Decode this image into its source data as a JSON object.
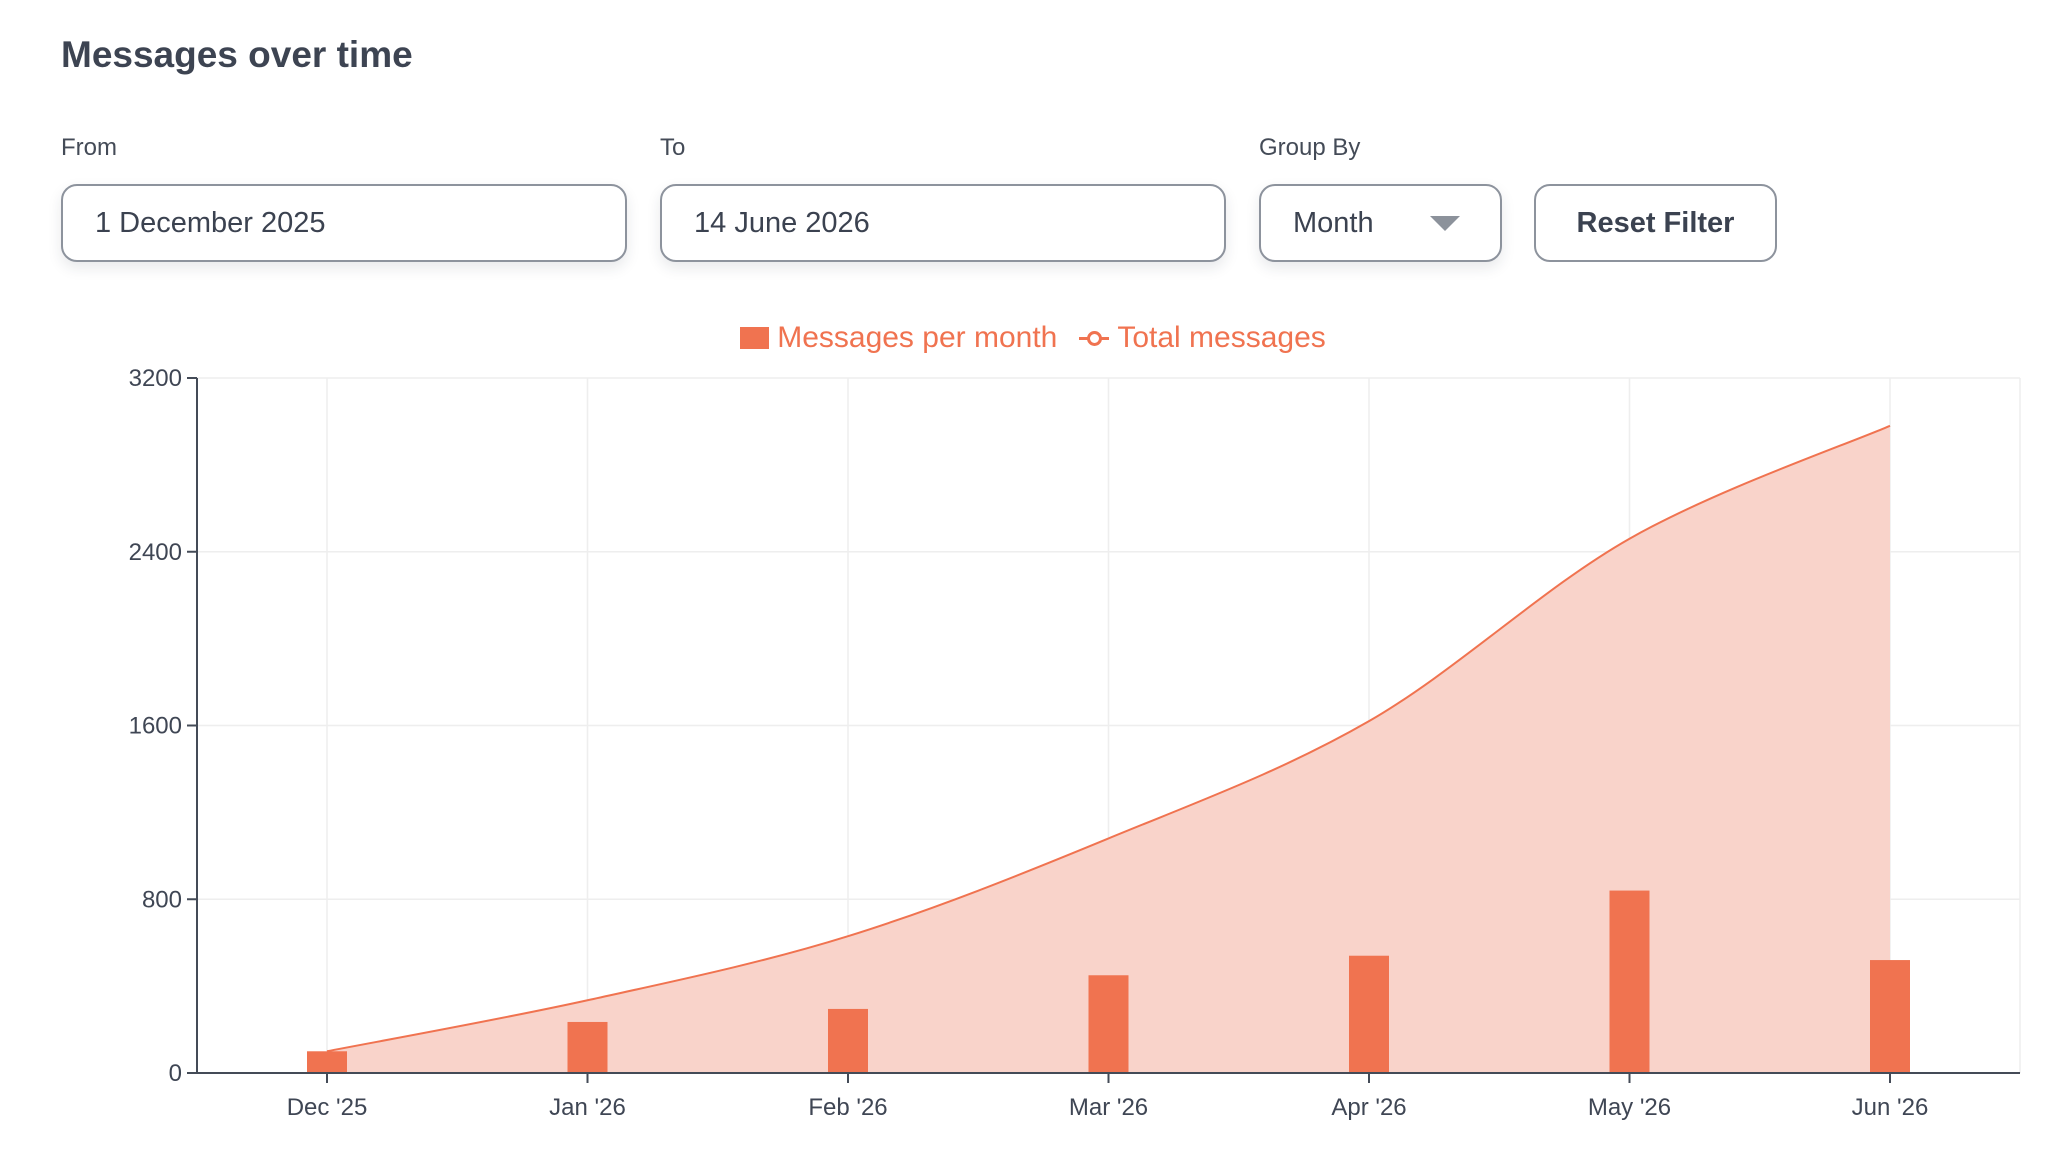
{
  "header": {
    "title": "Messages over time"
  },
  "filters": {
    "from_label": "From",
    "from_value": "1 December 2025",
    "to_label": "To",
    "to_value": "14 June 2026",
    "group_by_label": "Group By",
    "group_by_value": "Month",
    "reset_label": "Reset Filter"
  },
  "colors": {
    "accent": "#f07350",
    "area_fill": "#f9d3ca",
    "grid": "#eeeeee",
    "axis": "#444b57"
  },
  "chart_data": {
    "type": "bar",
    "categories": [
      "Dec '25",
      "Jan '26",
      "Feb '26",
      "Mar '26",
      "Apr '26",
      "May '26",
      "Jun '26"
    ],
    "series": [
      {
        "name": "Messages per month",
        "type": "bar",
        "values": [
          100,
          235,
          295,
          450,
          540,
          840,
          520
        ]
      },
      {
        "name": "Total messages",
        "type": "area",
        "values": [
          100,
          335,
          630,
          1080,
          1620,
          2460,
          2980
        ]
      }
    ],
    "ylim": [
      0,
      3200
    ],
    "yticks": [
      0,
      800,
      1600,
      2400,
      3200
    ],
    "grid": true,
    "legend_position": "top-center"
  }
}
